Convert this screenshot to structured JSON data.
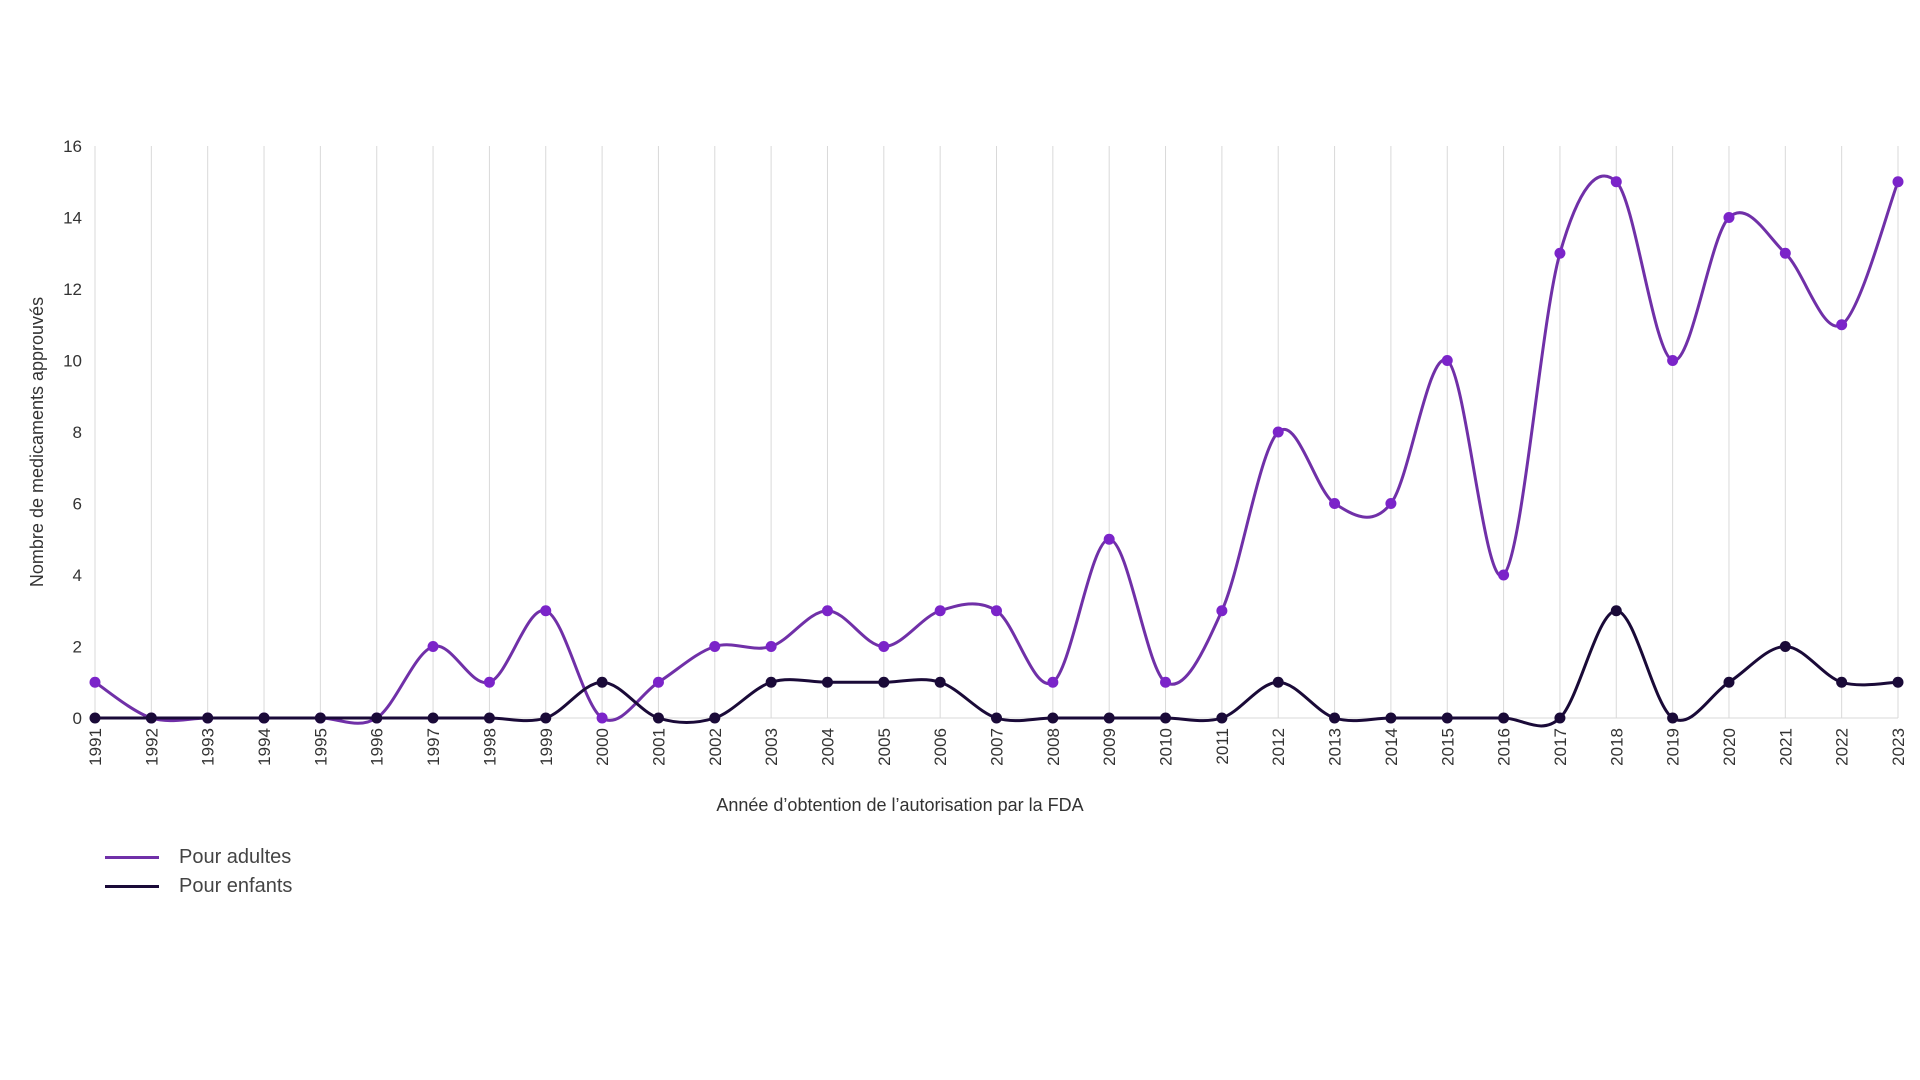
{
  "chart_data": {
    "type": "line",
    "title": "",
    "xlabel": "Année d’obtention de l’autorisation par la FDA",
    "ylabel": "Nombre de medicaments approuvés",
    "x": [
      1991,
      1992,
      1993,
      1994,
      1995,
      1996,
      1997,
      1998,
      1999,
      2000,
      2001,
      2002,
      2003,
      2004,
      2005,
      2006,
      2007,
      2008,
      2009,
      2010,
      2011,
      2012,
      2013,
      2014,
      2015,
      2016,
      2017,
      2018,
      2019,
      2020,
      2021,
      2022,
      2023
    ],
    "ylim": [
      0,
      16
    ],
    "yticks": [
      0,
      2,
      4,
      6,
      8,
      10,
      12,
      14,
      16
    ],
    "grid": "vertical",
    "legend_position": "bottom-left",
    "series": [
      {
        "name": "Pour adultes",
        "color": "#7B24C9",
        "line_color": "#7030A8",
        "values": [
          1,
          0,
          0,
          0,
          0,
          0,
          2,
          1,
          3,
          0,
          1,
          2,
          2,
          3,
          2,
          3,
          3,
          1,
          5,
          1,
          3,
          8,
          6,
          6,
          10,
          4,
          13,
          15,
          10,
          14,
          13,
          11,
          15
        ]
      },
      {
        "name": "Pour enfants",
        "color": "#1A0A38",
        "line_color": "#1A0A38",
        "values": [
          0,
          0,
          0,
          0,
          0,
          0,
          0,
          0,
          0,
          1,
          0,
          0,
          1,
          1,
          1,
          1,
          0,
          0,
          0,
          0,
          0,
          1,
          0,
          0,
          0,
          0,
          0,
          3,
          0,
          1,
          2,
          1,
          1
        ]
      }
    ]
  }
}
